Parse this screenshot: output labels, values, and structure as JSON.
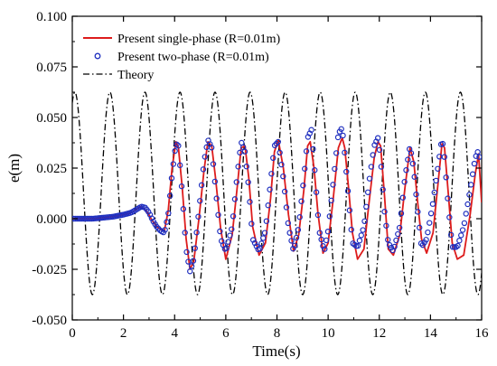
{
  "chart_data": {
    "type": "line",
    "xlabel": "Time(s)",
    "ylabel": "e(m)",
    "xlim": [
      0,
      16
    ],
    "ylim": [
      -0.05,
      0.1
    ],
    "x_ticks": [
      0,
      2,
      4,
      6,
      8,
      10,
      12,
      14,
      16
    ],
    "x_tick_labels": [
      "0",
      "2",
      "4",
      "6",
      "8",
      "10",
      "12",
      "14",
      "16"
    ],
    "y_ticks": [
      -0.05,
      -0.025,
      0.0,
      0.025,
      0.05,
      0.075,
      0.1
    ],
    "y_tick_labels": [
      "-0.050",
      "-0.025",
      "0.000",
      "0.025",
      "0.050",
      "0.075",
      "0.100"
    ],
    "grid": false,
    "legend_position": "top-left",
    "theory": {
      "name": "Theory",
      "color": "#000000",
      "style": "dash-dot",
      "mean": 0.0125,
      "amplitude": 0.05,
      "period": 1.37,
      "phase_peak_time": 0.1,
      "clip_max": 0.063,
      "clip_min": -0.0375
    },
    "series": [
      {
        "name": "Present single-phase (R=0.01m)",
        "color": "#dd1c1c",
        "style": "solid",
        "x": [
          0,
          0.4,
          0.8,
          1.2,
          1.6,
          2.0,
          2.3,
          2.5,
          2.65,
          2.8,
          2.95,
          3.1,
          3.3,
          3.5,
          3.6,
          3.75,
          3.9,
          4.05,
          4.15,
          4.3,
          4.45,
          4.6,
          4.75,
          4.95,
          5.15,
          5.3,
          5.45,
          5.6,
          5.8,
          6.0,
          6.25,
          6.45,
          6.6,
          6.75,
          6.9,
          7.05,
          7.3,
          7.55,
          7.75,
          7.9,
          8.05,
          8.25,
          8.45,
          8.65,
          8.85,
          9.05,
          9.2,
          9.3,
          9.45,
          9.6,
          9.8,
          10.0,
          10.2,
          10.4,
          10.55,
          10.65,
          10.8,
          10.95,
          11.15,
          11.4,
          11.6,
          11.8,
          11.95,
          12.05,
          12.2,
          12.35,
          12.55,
          12.8,
          13.0,
          13.2,
          13.35,
          13.5,
          13.65,
          13.85,
          14.1,
          14.3,
          14.45,
          14.55,
          14.7,
          14.85,
          15.05,
          15.3,
          15.55,
          15.75,
          15.88,
          16.0
        ],
        "y": [
          0.0,
          0.0,
          0.0,
          0.0005,
          0.001,
          0.002,
          0.003,
          0.0045,
          0.006,
          0.005,
          0.003,
          -0.0005,
          -0.004,
          -0.0055,
          -0.006,
          0.004,
          0.025,
          0.038,
          0.035,
          0.015,
          -0.01,
          -0.025,
          -0.021,
          0.0,
          0.024,
          0.038,
          0.036,
          0.02,
          -0.005,
          -0.02,
          -0.008,
          0.016,
          0.035,
          0.036,
          0.02,
          -0.004,
          -0.018,
          -0.012,
          0.01,
          0.033,
          0.039,
          0.025,
          0.002,
          -0.016,
          -0.008,
          0.014,
          0.036,
          0.038,
          0.025,
          0.003,
          -0.017,
          -0.012,
          0.01,
          0.035,
          0.04,
          0.035,
          0.015,
          -0.007,
          -0.02,
          -0.015,
          0.008,
          0.03,
          0.038,
          0.036,
          0.012,
          -0.015,
          -0.018,
          -0.008,
          0.015,
          0.035,
          0.028,
          0.008,
          -0.01,
          -0.017,
          -0.007,
          0.018,
          0.037,
          0.035,
          0.012,
          -0.012,
          -0.02,
          -0.018,
          0.002,
          0.022,
          0.032,
          0.008
        ]
      },
      {
        "name": "Present two-phase (R=0.01m)",
        "color": "#1f2fbf",
        "style": "open-circle",
        "x_start": 0.05,
        "x_end": 15.95,
        "x_step": 0.065,
        "x": [
          0,
          0.4,
          0.8,
          1.2,
          1.6,
          2.0,
          2.3,
          2.5,
          2.7,
          2.85,
          3.0,
          3.15,
          3.3,
          3.45,
          3.6,
          3.75,
          3.9,
          4.05,
          4.15,
          4.3,
          4.45,
          4.6,
          4.75,
          4.95,
          5.15,
          5.3,
          5.45,
          5.6,
          5.8,
          6.0,
          6.25,
          6.45,
          6.6,
          6.75,
          6.9,
          7.05,
          7.3,
          7.55,
          7.75,
          7.9,
          8.05,
          8.25,
          8.45,
          8.65,
          8.85,
          9.05,
          9.2,
          9.35,
          9.5,
          9.65,
          9.85,
          10.0,
          10.2,
          10.4,
          10.55,
          10.65,
          10.8,
          10.95,
          11.15,
          11.4,
          11.6,
          11.8,
          11.95,
          12.05,
          12.2,
          12.35,
          12.55,
          12.8,
          13.0,
          13.2,
          13.35,
          13.5,
          13.65,
          13.85,
          14.1,
          14.3,
          14.45,
          14.55,
          14.7,
          14.85,
          15.05,
          15.3,
          15.55,
          15.75,
          15.88,
          16.0
        ],
        "y": [
          0.0,
          0.0,
          0.0,
          0.0005,
          0.001,
          0.002,
          0.003,
          0.0045,
          0.006,
          0.0055,
          0.003,
          -0.001,
          -0.004,
          -0.006,
          -0.007,
          0.002,
          0.022,
          0.037,
          0.036,
          0.012,
          -0.015,
          -0.026,
          -0.02,
          0.004,
          0.028,
          0.039,
          0.035,
          0.015,
          -0.01,
          -0.016,
          -0.004,
          0.022,
          0.038,
          0.033,
          0.015,
          -0.01,
          -0.016,
          -0.006,
          0.018,
          0.036,
          0.038,
          0.02,
          -0.004,
          -0.016,
          -0.004,
          0.02,
          0.04,
          0.044,
          0.02,
          -0.006,
          -0.016,
          -0.006,
          0.018,
          0.042,
          0.045,
          0.032,
          0.01,
          -0.012,
          -0.014,
          -0.004,
          0.018,
          0.036,
          0.04,
          0.03,
          0.004,
          -0.012,
          -0.016,
          -0.004,
          0.02,
          0.036,
          0.024,
          0.004,
          -0.014,
          -0.01,
          0.008,
          0.026,
          0.04,
          0.03,
          0.006,
          -0.014,
          -0.014,
          -0.004,
          0.014,
          0.03,
          0.034,
          0.02
        ]
      }
    ]
  }
}
